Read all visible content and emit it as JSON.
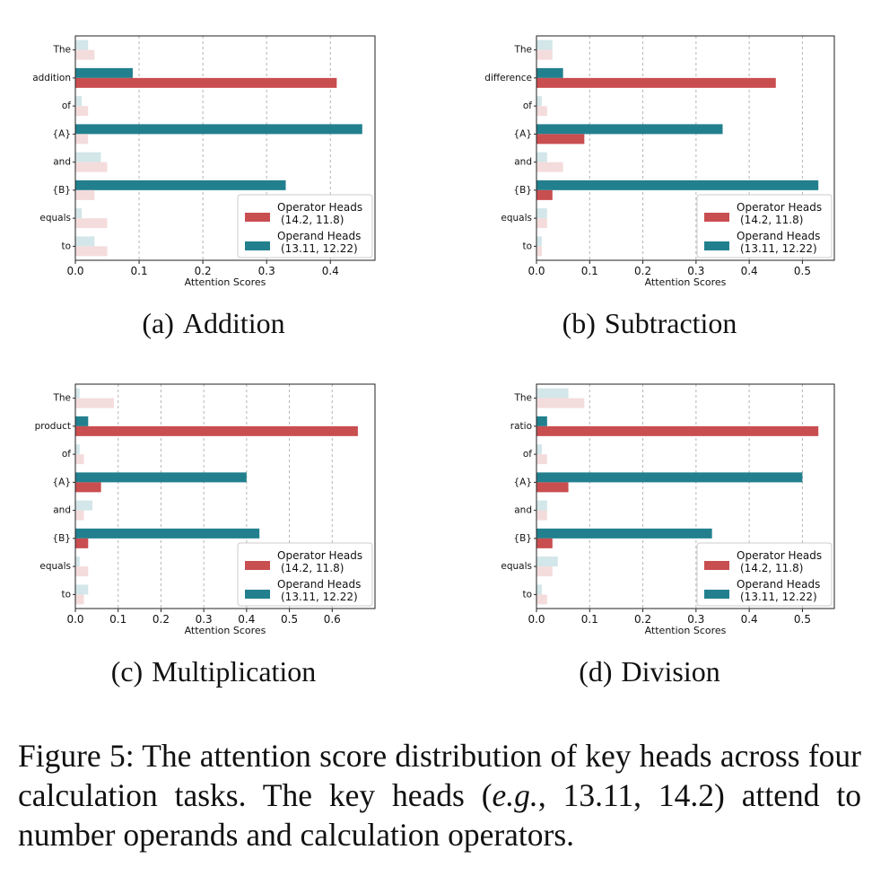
{
  "colors": {
    "operator": "#c94e50",
    "operand": "#22808e",
    "operator_light": "#f4dcdc",
    "operand_light": "#d3e6e9"
  },
  "chart_data": [
    {
      "type": "bar",
      "orientation": "horizontal",
      "sub_label": "(a)",
      "sub_title": "Addition",
      "categories": [
        "The",
        "addition",
        "of",
        "{A}",
        "and",
        "{B}",
        "equals",
        "to"
      ],
      "series": [
        {
          "name": "Operator Heads",
          "heads": "(14.2, 11.8)",
          "values": [
            0.03,
            0.41,
            0.02,
            0.02,
            0.05,
            0.03,
            0.05,
            0.05
          ]
        },
        {
          "name": "Operand Heads",
          "heads": "(13.11, 12.22)",
          "values": [
            0.02,
            0.09,
            0.01,
            0.45,
            0.04,
            0.33,
            0.01,
            0.03
          ]
        }
      ],
      "highlight": {
        "operator": [
          1
        ],
        "operand": [
          1,
          3,
          5
        ]
      },
      "xlabel": "Attention Scores",
      "xlim": [
        0,
        0.47
      ],
      "xticks": [
        0.0,
        0.1,
        0.2,
        0.3,
        0.4
      ],
      "tick_labels": [
        "0.0",
        "0.1",
        "0.2",
        "0.3",
        "0.4"
      ],
      "legend_placement": "lower-right"
    },
    {
      "type": "bar",
      "orientation": "horizontal",
      "sub_label": "(b)",
      "sub_title": "Subtraction",
      "categories": [
        "The",
        "difference",
        "of",
        "{A}",
        "and",
        "{B}",
        "equals",
        "to"
      ],
      "series": [
        {
          "name": "Operator Heads",
          "heads": "(14.2, 11.8)",
          "values": [
            0.03,
            0.45,
            0.02,
            0.09,
            0.05,
            0.03,
            0.02,
            0.01
          ]
        },
        {
          "name": "Operand Heads",
          "heads": "(13.11, 12.22)",
          "values": [
            0.03,
            0.05,
            0.01,
            0.35,
            0.02,
            0.53,
            0.02,
            0.01
          ]
        }
      ],
      "highlight": {
        "operator": [
          1,
          3,
          5
        ],
        "operand": [
          1,
          3,
          5
        ]
      },
      "xlabel": "Attention Scores",
      "xlim": [
        0,
        0.56
      ],
      "xticks": [
        0.0,
        0.1,
        0.2,
        0.3,
        0.4,
        0.5
      ],
      "tick_labels": [
        "0.0",
        "0.1",
        "0.2",
        "0.3",
        "0.4",
        "0.5"
      ],
      "legend_placement": "lower-right"
    },
    {
      "type": "bar",
      "orientation": "horizontal",
      "sub_label": "(c)",
      "sub_title": "Multiplication",
      "categories": [
        "The",
        "product",
        "of",
        "{A}",
        "and",
        "{B}",
        "equals",
        "to"
      ],
      "series": [
        {
          "name": "Operator Heads",
          "heads": "(14.2, 11.8)",
          "values": [
            0.09,
            0.66,
            0.02,
            0.06,
            0.02,
            0.03,
            0.03,
            0.02
          ]
        },
        {
          "name": "Operand Heads",
          "heads": "(13.11, 12.22)",
          "values": [
            0.01,
            0.03,
            0.01,
            0.4,
            0.04,
            0.43,
            0.01,
            0.03
          ]
        }
      ],
      "highlight": {
        "operator": [
          1,
          3,
          5
        ],
        "operand": [
          1,
          3,
          5
        ]
      },
      "xlabel": "Attention Scores",
      "xlim": [
        0,
        0.7
      ],
      "xticks": [
        0.0,
        0.1,
        0.2,
        0.3,
        0.4,
        0.5,
        0.6
      ],
      "tick_labels": [
        "0.0",
        "0.1",
        "0.2",
        "0.3",
        "0.4",
        "0.5",
        "0.6"
      ],
      "legend_placement": "lower-right"
    },
    {
      "type": "bar",
      "orientation": "horizontal",
      "sub_label": "(d)",
      "sub_title": "Division",
      "categories": [
        "The",
        "ratio",
        "of",
        "{A}",
        "and",
        "{B}",
        "equals",
        "to"
      ],
      "series": [
        {
          "name": "Operator Heads",
          "heads": "(14.2, 11.8)",
          "values": [
            0.09,
            0.53,
            0.02,
            0.06,
            0.02,
            0.03,
            0.03,
            0.02
          ]
        },
        {
          "name": "Operand Heads",
          "heads": "(13.11, 12.22)",
          "values": [
            0.06,
            0.02,
            0.01,
            0.5,
            0.02,
            0.33,
            0.04,
            0.01
          ]
        }
      ],
      "highlight": {
        "operator": [
          1,
          3,
          5
        ],
        "operand": [
          1,
          3,
          5
        ]
      },
      "xlabel": "Attention Scores",
      "xlim": [
        0,
        0.56
      ],
      "xticks": [
        0.0,
        0.1,
        0.2,
        0.3,
        0.4,
        0.5
      ],
      "tick_labels": [
        "0.0",
        "0.1",
        "0.2",
        "0.3",
        "0.4",
        "0.5"
      ],
      "legend_placement": "lower-right"
    }
  ],
  "caption": {
    "label": "Figure 5:",
    "text_1": "The attention score distribution of key heads across four calculation tasks. The key heads (",
    "eg": "e.g.",
    "text_2": ", 13.11, 14.2) attend to number operands and calculation operators."
  }
}
